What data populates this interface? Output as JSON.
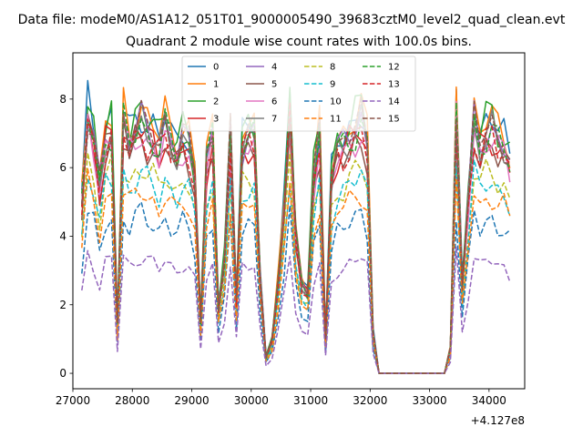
{
  "chart_data": {
    "type": "line",
    "suptitle": "Data file: modeM0/AS1A12_051T01_9000005490_39683cztM0_level2_quad_clean.evt",
    "title": "Quadrant 2 module wise count rates with 100.0s bins.",
    "xlabel": "",
    "ylabel": "",
    "x_offset_label": "+4.127e8",
    "xlim": [
      27000,
      34600
    ],
    "ylim": [
      -0.45,
      9.35
    ],
    "xticks": [
      27000,
      28000,
      29000,
      30000,
      31000,
      32000,
      33000,
      34000
    ],
    "xtick_labels": [
      "27000",
      "28000",
      "29000",
      "30000",
      "31000",
      "32000",
      "33000",
      "34000"
    ],
    "yticks": [
      0,
      2,
      4,
      6,
      8
    ],
    "ytick_labels": [
      "0",
      "2",
      "4",
      "6",
      "8"
    ],
    "legend": {
      "position": "top-center",
      "columns": 4
    },
    "x": [
      27150,
      27250,
      27350,
      27450,
      27550,
      27650,
      27750,
      27850,
      27950,
      28050,
      28150,
      28250,
      28350,
      28450,
      28550,
      28650,
      28750,
      28850,
      28950,
      29050,
      29150,
      29250,
      29350,
      29450,
      29550,
      29650,
      29750,
      29850,
      29950,
      30050,
      30150,
      30250,
      30350,
      30450,
      30550,
      30650,
      30750,
      30850,
      30950,
      31050,
      31150,
      31250,
      31350,
      31450,
      31550,
      31650,
      31750,
      31850,
      31950,
      32050,
      32150,
      32250,
      32350,
      32450,
      32550,
      32650,
      32750,
      32850,
      32950,
      33050,
      33150,
      33250,
      33350,
      33450,
      33550,
      33650,
      33750,
      33850,
      33950,
      34050,
      34150,
      34250,
      34350
    ],
    "series": [
      {
        "name": "0",
        "color": "#1f77b4",
        "dash": "solid",
        "base": 4.95
      },
      {
        "name": "1",
        "color": "#ff7f0e",
        "dash": "solid",
        "base": 5.0
      },
      {
        "name": "2",
        "color": "#2ca02c",
        "dash": "solid",
        "base": 5.0
      },
      {
        "name": "3",
        "color": "#d62728",
        "dash": "solid",
        "base": 4.6
      },
      {
        "name": "4",
        "color": "#9467bd",
        "dash": "solid",
        "base": 4.75
      },
      {
        "name": "5",
        "color": "#8c564b",
        "dash": "solid",
        "base": 4.45
      },
      {
        "name": "6",
        "color": "#e377c2",
        "dash": "solid",
        "base": 4.55
      },
      {
        "name": "7",
        "color": "#7f7f7f",
        "dash": "solid",
        "base": 4.7
      },
      {
        "name": "8",
        "color": "#bcbd22",
        "dash": "dashed",
        "base": 3.9
      },
      {
        "name": "9",
        "color": "#17becf",
        "dash": "dashed",
        "base": 3.75
      },
      {
        "name": "10",
        "color": "#1f77b4",
        "dash": "dashed",
        "base": 3.0
      },
      {
        "name": "11",
        "color": "#ff7f0e",
        "dash": "dashed",
        "base": 3.45
      },
      {
        "name": "12",
        "color": "#2ca02c",
        "dash": "dashed",
        "base": 4.7
      },
      {
        "name": "13",
        "color": "#d62728",
        "dash": "dashed",
        "base": 4.55
      },
      {
        "name": "14",
        "color": "#9467bd",
        "dash": "dashed",
        "base": 2.2
      },
      {
        "name": "15",
        "color": "#8c564b",
        "dash": "dashed",
        "base": 4.8
      }
    ],
    "profile": [
      1.05,
      1.6,
      1.45,
      1.15,
      1.45,
      1.5,
      0.3,
      1.55,
      1.42,
      1.5,
      1.55,
      1.48,
      1.45,
      1.38,
      1.52,
      1.42,
      1.35,
      1.45,
      1.4,
      1.2,
      0.32,
      1.3,
      1.45,
      0.4,
      0.7,
      1.45,
      0.45,
      1.4,
      1.45,
      1.45,
      0.6,
      0.1,
      0.2,
      0.55,
      1.0,
      1.6,
      0.85,
      0.55,
      0.5,
      1.2,
      1.45,
      0.22,
      1.2,
      1.38,
      1.4,
      1.45,
      1.5,
      1.55,
      1.4,
      0.25,
      0.0,
      0.0,
      0.0,
      0.0,
      0.0,
      0.0,
      0.0,
      0.0,
      0.0,
      0.0,
      0.0,
      0.0,
      0.15,
      1.6,
      0.55,
      1.05,
      1.55,
      1.4,
      1.48,
      1.5,
      1.42,
      1.4,
      1.3
    ]
  }
}
